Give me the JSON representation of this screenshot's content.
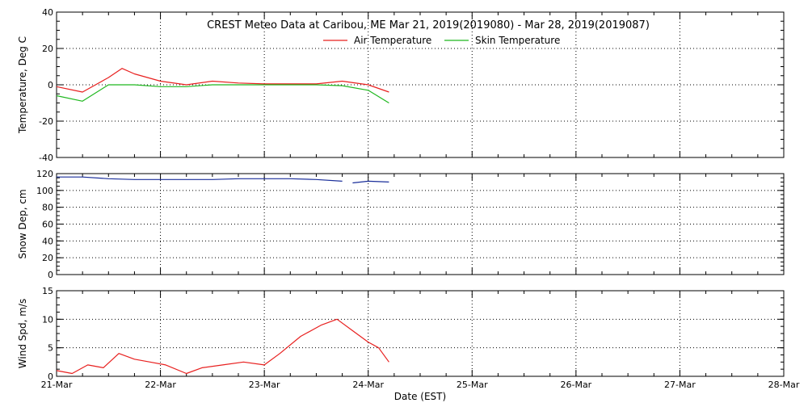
{
  "colors": {
    "air": "#e8201f",
    "skin": "#1fb81f",
    "snow": "#1a2e9a",
    "wind": "#e8201f",
    "axis": "#000000",
    "grid": "#000000"
  },
  "x_axis": {
    "label": "Date (EST)",
    "tick_labels": [
      "21-Mar",
      "22-Mar",
      "23-Mar",
      "24-Mar",
      "25-Mar",
      "26-Mar",
      "27-Mar",
      "28-Mar"
    ],
    "range_days": [
      0,
      7
    ]
  },
  "chart_data": [
    {
      "type": "line",
      "title": "CREST Meteo Data at Caribou, ME   Mar 21, 2019(2019080) - Mar 28, 2019(2019087)",
      "ylabel": "Temperature, Deg C",
      "ylim": [
        -40,
        40
      ],
      "yticks": [
        "-40",
        "-20",
        "0",
        "20",
        "40"
      ],
      "ytick_values": [
        -40,
        -20,
        0,
        20,
        40
      ],
      "grid": true,
      "legend": "top-center",
      "x": [
        "21-Mar 00:00",
        "21-Mar 06:00",
        "21-Mar 12:00",
        "21-Mar 15:00",
        "21-Mar 18:00",
        "22-Mar 00:00",
        "22-Mar 06:00",
        "22-Mar 12:00",
        "22-Mar 18:00",
        "23-Mar 00:00",
        "23-Mar 06:00",
        "23-Mar 12:00",
        "23-Mar 18:00",
        "24-Mar 00:00",
        "24-Mar 04:48"
      ],
      "x_days": [
        0,
        0.25,
        0.5,
        0.63,
        0.75,
        1.0,
        1.25,
        1.5,
        1.75,
        2.0,
        2.25,
        2.5,
        2.75,
        3.0,
        3.2
      ],
      "series": [
        {
          "name": "Air Temperature",
          "values": [
            -1,
            -4,
            4,
            9,
            6,
            2,
            0,
            2,
            1,
            0.5,
            0.5,
            0.5,
            2,
            0,
            -4
          ],
          "color": "#e8201f"
        },
        {
          "name": "Skin Temperature",
          "values": [
            -6,
            -9,
            0,
            0,
            0,
            -1,
            -1,
            0,
            0,
            0,
            0,
            0,
            -0.5,
            -3,
            -10
          ],
          "color": "#1fb81f"
        }
      ]
    },
    {
      "type": "line",
      "ylabel": "Snow Dep, cm",
      "ylim": [
        0,
        120
      ],
      "yticks": [
        "0",
        "20",
        "40",
        "60",
        "80",
        "100",
        "120"
      ],
      "ytick_values": [
        0,
        20,
        40,
        60,
        80,
        100,
        120
      ],
      "grid": true,
      "x_days": [
        0,
        0.25,
        0.5,
        0.75,
        1.0,
        1.25,
        1.5,
        1.75,
        2.0,
        2.25,
        2.5,
        2.75,
        2.85,
        3.0,
        3.2
      ],
      "series": [
        {
          "name": "Snow Depth",
          "values": [
            116,
            116,
            114,
            113,
            113,
            113,
            113,
            114,
            114,
            114,
            113,
            111,
            109,
            111,
            110
          ],
          "color": "#1a2e9a",
          "gaps_after_index": [
            11
          ]
        }
      ]
    },
    {
      "type": "line",
      "ylabel": "Wind Spd, m/s",
      "ylim": [
        0,
        15
      ],
      "yticks": [
        "0",
        "5",
        "10",
        "15"
      ],
      "ytick_values": [
        0,
        5,
        10,
        15
      ],
      "grid": true,
      "x_days": [
        0,
        0.15,
        0.3,
        0.45,
        0.6,
        0.75,
        0.9,
        1.05,
        1.25,
        1.4,
        1.6,
        1.8,
        2.0,
        2.15,
        2.35,
        2.55,
        2.7,
        2.85,
        3.0,
        3.1,
        3.2
      ],
      "series": [
        {
          "name": "Wind Speed",
          "values": [
            1,
            0.5,
            2,
            1.5,
            4,
            3,
            2.5,
            2,
            0.5,
            1.5,
            2,
            2.5,
            2,
            4,
            7,
            9,
            10,
            8,
            6,
            5,
            2.5
          ],
          "color": "#e8201f"
        }
      ]
    }
  ]
}
